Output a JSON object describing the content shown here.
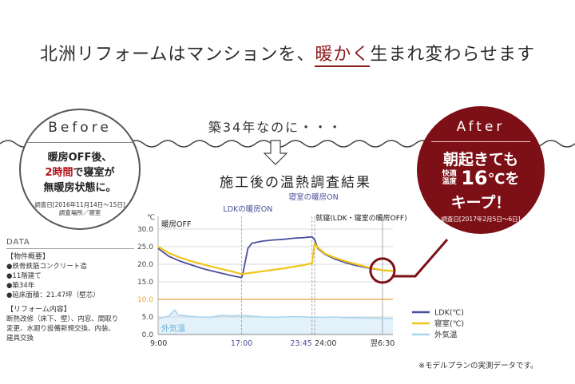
{
  "headline": {
    "before": "北洲リフォームはマンションを、",
    "accent": "暖かく",
    "after": "生まれ変わらせます"
  },
  "subtitle": "築34年なのに・・・",
  "before": {
    "label": "Before",
    "line1": "暖房OFF後、",
    "line2_red": "2時間",
    "line2_rest": "で寝室が",
    "line3": "無暖房状態に。",
    "note1": "調査日[2016年11月14日〜15日]",
    "note2": "調査場所／寝室"
  },
  "after": {
    "label": "After",
    "line1": "朝起きても",
    "small1": "快適",
    "small2": "温度",
    "big": "16",
    "mid": "℃を",
    "line3": "キープ！",
    "note": "調査日[2017年2月5日〜6日]"
  },
  "data": {
    "title": "DATA",
    "head1": "【物件概要】",
    "items1": [
      "●鉄骨鉄筋コンクリート造",
      "●11階建て",
      "●築34年",
      "●延床面積：21.47坪（壁芯）"
    ],
    "head2": "【リフォーム内容】",
    "items2": [
      "断熱改修（床下、壁）、内窓、間取り",
      "変更、水廻り設備新規交換、内装、",
      "建具交換"
    ]
  },
  "footnote": "※モデルプランの実測データです。",
  "colors": {
    "ldk": "#4a4f9c",
    "bedroom": "#f0c419",
    "outdoor": "#a9d4ee",
    "accent": "#7d1016",
    "ref_line": "#e8a33c"
  },
  "chart_data": {
    "type": "line",
    "title": "施工後の温熱調査結果",
    "ylabel": "℃",
    "ylim": [
      0,
      30
    ],
    "yticks": [
      "30.0",
      "25.0",
      "20.0",
      "15.0",
      "10.0",
      "5.0",
      "0.0"
    ],
    "xticks": [
      "9:00",
      "17:00",
      "23:45",
      "24:00",
      "翌6:30"
    ],
    "x_hours": [
      0,
      8,
      14.75,
      15,
      21.5
    ],
    "reference_line": 10,
    "annotations": {
      "heating_off": "暖房OFF",
      "ldk_heating_on": "LDKの暖房ON",
      "bedroom_heating_on": "寝室の暖房ON",
      "sleep": "就寝(LDK・寝室の暖房OFF)",
      "outdoor_label": "外気温"
    },
    "series": [
      {
        "name": "LDK(℃)",
        "x": [
          0,
          1,
          2,
          3,
          4,
          5,
          6,
          7,
          8,
          8.1,
          8.6,
          9,
          10,
          11,
          12,
          13,
          14,
          14.7,
          14.75,
          15,
          15.3,
          16,
          17,
          18,
          19,
          20,
          21,
          21.5,
          22.5
        ],
        "values": [
          24.5,
          22.3,
          21.0,
          20.0,
          19.0,
          18.2,
          17.5,
          16.8,
          16.2,
          17.0,
          24.5,
          26.0,
          26.6,
          26.9,
          27.1,
          27.4,
          27.6,
          27.8,
          27.8,
          27.0,
          24.5,
          22.8,
          21.4,
          20.4,
          19.6,
          19.0,
          18.5,
          18.3,
          18.1
        ]
      },
      {
        "name": "寝室(℃)",
        "x": [
          0,
          1,
          2,
          3,
          4,
          5,
          6,
          7,
          8,
          9,
          10,
          11,
          12,
          13,
          14,
          14.75,
          15,
          15.3,
          16,
          17,
          18,
          19,
          20,
          21,
          21.5,
          22.5
        ],
        "values": [
          25.0,
          23.2,
          22.0,
          21.0,
          20.2,
          19.4,
          18.7,
          18.0,
          17.2,
          17.6,
          18.0,
          18.4,
          18.8,
          19.3,
          19.8,
          20.3,
          25.8,
          24.8,
          23.0,
          21.8,
          20.8,
          20.0,
          19.2,
          18.6,
          18.3,
          18.1
        ]
      },
      {
        "name": "外気温",
        "x": [
          0,
          1,
          1.6,
          1.9,
          3,
          4,
          5,
          6,
          7,
          8,
          9,
          10,
          11,
          12,
          13,
          14,
          15,
          16,
          17,
          18,
          19,
          20,
          21,
          21.5,
          22.5
        ],
        "values": [
          4.6,
          5.2,
          7.0,
          5.6,
          5.2,
          5.0,
          4.9,
          5.4,
          5.3,
          5.4,
          5.2,
          5.0,
          4.9,
          5.0,
          5.1,
          5.0,
          4.9,
          4.9,
          5.0,
          4.8,
          4.8,
          4.7,
          4.7,
          4.6,
          4.5
        ]
      }
    ],
    "legend": [
      "LDK(℃)",
      "寝室(℃)",
      "外気温"
    ]
  }
}
